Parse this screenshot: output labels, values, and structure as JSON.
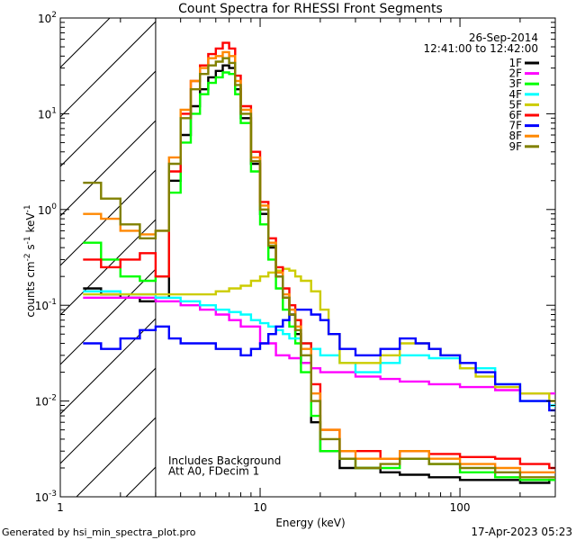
{
  "footer": {
    "generated_by": "Generated by hsi_min_spectra_plot.pro",
    "timestamp": "17-Apr-2023 05:23"
  },
  "chart_data": {
    "type": "line",
    "title": "Count Spectra for RHESSI Front Segments",
    "xlabel": "Energy (keV)",
    "ylabel_base": "counts cm",
    "ylabel_parts": [
      "-2",
      " s",
      "-1",
      " keV",
      "-1"
    ],
    "x_scale": "log",
    "y_scale": "log",
    "xlim": [
      1,
      300
    ],
    "ylim": [
      0.001,
      100
    ],
    "x_ticks": [
      1,
      10,
      100
    ],
    "x_tick_labels": [
      "1",
      "10",
      "100"
    ],
    "y_ticks": [
      0.001,
      0.01,
      0.1,
      1,
      10,
      100
    ],
    "y_tick_labels": [
      {
        "base": "10",
        "exp": "-3"
      },
      {
        "base": "10",
        "exp": "-2"
      },
      {
        "base": "10",
        "exp": "-1"
      },
      {
        "base": "10",
        "exp": "0"
      },
      {
        "base": "10",
        "exp": "1"
      },
      {
        "base": "10",
        "exp": "2"
      }
    ],
    "date": "26-Sep-2014",
    "time_range": "12:41:00 to 12:42:00",
    "hatched_region_xmax": 3,
    "annotations": [
      "Includes Background",
      "Att A0, FDecim 1"
    ],
    "series": [
      {
        "name": "1F",
        "color": "#000000",
        "x": [
          1.3,
          1.6,
          2.0,
          2.5,
          3.0,
          3.5,
          4,
          4.5,
          5,
          5.5,
          6,
          6.5,
          7,
          7.5,
          8,
          9,
          10,
          11,
          12,
          13,
          14,
          15,
          16,
          18,
          20,
          25,
          30,
          40,
          50,
          70,
          100,
          150,
          200,
          280
        ],
        "y": [
          0.15,
          0.13,
          0.12,
          0.11,
          0.12,
          2.0,
          6,
          12,
          18,
          24,
          28,
          32,
          30,
          18,
          9,
          3,
          0.9,
          0.4,
          0.2,
          0.12,
          0.08,
          0.05,
          0.025,
          0.006,
          0.003,
          0.002,
          0.002,
          0.0018,
          0.0017,
          0.0016,
          0.0015,
          0.0015,
          0.0014,
          0.0015
        ]
      },
      {
        "name": "2F",
        "color": "#ff00ff",
        "x": [
          1.3,
          2.0,
          3.0,
          4,
          5,
          6,
          7,
          8,
          10,
          12,
          14,
          16,
          18,
          20,
          25,
          30,
          40,
          50,
          70,
          100,
          150,
          200,
          280
        ],
        "y": [
          0.12,
          0.12,
          0.11,
          0.1,
          0.09,
          0.08,
          0.07,
          0.06,
          0.04,
          0.03,
          0.028,
          0.025,
          0.022,
          0.02,
          0.02,
          0.018,
          0.017,
          0.016,
          0.015,
          0.014,
          0.013,
          0.012,
          0.012
        ]
      },
      {
        "name": "3F",
        "color": "#00ff00",
        "x": [
          1.3,
          1.6,
          2.0,
          2.5,
          3.0,
          3.5,
          4,
          4.5,
          5,
          5.5,
          6,
          6.5,
          7,
          7.5,
          8,
          9,
          10,
          11,
          12,
          13,
          14,
          15,
          16,
          18,
          20,
          25,
          30,
          40,
          50,
          70,
          100,
          150,
          200,
          280
        ],
        "y": [
          0.45,
          0.3,
          0.2,
          0.18,
          0.2,
          1.5,
          5,
          10,
          16,
          21,
          24,
          27,
          26,
          16,
          8,
          2.5,
          0.7,
          0.3,
          0.15,
          0.09,
          0.06,
          0.04,
          0.02,
          0.007,
          0.003,
          0.0025,
          0.002,
          0.002,
          0.0025,
          0.0022,
          0.0018,
          0.0016,
          0.0015,
          0.0015
        ]
      },
      {
        "name": "4F",
        "color": "#00ffff",
        "x": [
          1.3,
          2.0,
          3.0,
          4,
          5,
          6,
          7,
          8,
          9,
          10,
          11,
          12,
          13,
          14,
          16,
          18,
          20,
          25,
          30,
          40,
          50,
          70,
          100,
          150,
          200,
          280
        ],
        "y": [
          0.14,
          0.13,
          0.12,
          0.11,
          0.1,
          0.09,
          0.085,
          0.08,
          0.07,
          0.065,
          0.06,
          0.055,
          0.05,
          0.045,
          0.04,
          0.035,
          0.03,
          0.025,
          0.02,
          0.025,
          0.03,
          0.028,
          0.022,
          0.015,
          0.01,
          0.009
        ]
      },
      {
        "name": "5F",
        "color": "#cccc00",
        "x": [
          1.3,
          2.0,
          3.0,
          4,
          5,
          6,
          7,
          8,
          9,
          10,
          11,
          12,
          13,
          14,
          15,
          16,
          18,
          20,
          22,
          25,
          30,
          40,
          50,
          60,
          70,
          80,
          100,
          120,
          150,
          200,
          280
        ],
        "y": [
          0.13,
          0.13,
          0.13,
          0.13,
          0.13,
          0.14,
          0.15,
          0.16,
          0.18,
          0.2,
          0.22,
          0.23,
          0.24,
          0.23,
          0.2,
          0.18,
          0.14,
          0.09,
          0.05,
          0.025,
          0.025,
          0.03,
          0.04,
          0.04,
          0.035,
          0.03,
          0.022,
          0.018,
          0.014,
          0.012,
          0.01
        ]
      },
      {
        "name": "6F",
        "color": "#ff0000",
        "x": [
          1.3,
          1.6,
          2.0,
          2.5,
          3.0,
          3.5,
          4,
          4.5,
          5,
          5.5,
          6,
          6.5,
          7,
          7.5,
          8,
          9,
          10,
          11,
          12,
          13,
          14,
          15,
          16,
          18,
          20,
          25,
          30,
          40,
          50,
          70,
          100,
          150,
          200,
          280
        ],
        "y": [
          0.3,
          0.25,
          0.3,
          0.35,
          0.2,
          2.5,
          10,
          22,
          32,
          42,
          48,
          55,
          48,
          25,
          12,
          4,
          1.2,
          0.5,
          0.25,
          0.15,
          0.1,
          0.07,
          0.04,
          0.015,
          0.005,
          0.003,
          0.003,
          0.0025,
          0.003,
          0.0028,
          0.0026,
          0.0025,
          0.0022,
          0.002
        ]
      },
      {
        "name": "7F",
        "color": "#0000ff",
        "x": [
          1.3,
          1.6,
          2.0,
          2.5,
          3.0,
          3.5,
          4,
          5,
          6,
          7,
          8,
          9,
          10,
          11,
          12,
          13,
          14,
          15,
          16,
          18,
          20,
          22,
          25,
          30,
          40,
          50,
          60,
          70,
          80,
          100,
          120,
          150,
          200,
          280
        ],
        "y": [
          0.04,
          0.035,
          0.045,
          0.055,
          0.06,
          0.045,
          0.04,
          0.04,
          0.035,
          0.035,
          0.03,
          0.035,
          0.04,
          0.05,
          0.06,
          0.07,
          0.08,
          0.09,
          0.09,
          0.08,
          0.07,
          0.05,
          0.035,
          0.03,
          0.035,
          0.045,
          0.04,
          0.035,
          0.03,
          0.025,
          0.02,
          0.015,
          0.01,
          0.008
        ]
      },
      {
        "name": "8F",
        "color": "#ff8800",
        "x": [
          1.3,
          1.6,
          2.0,
          2.5,
          3.0,
          3.5,
          4,
          4.5,
          5,
          5.5,
          6,
          6.5,
          7,
          7.5,
          8,
          9,
          10,
          11,
          12,
          13,
          14,
          15,
          16,
          18,
          20,
          25,
          30,
          40,
          50,
          70,
          100,
          150,
          200,
          280
        ],
        "y": [
          0.9,
          0.8,
          0.6,
          0.55,
          0.6,
          3.5,
          11,
          22,
          30,
          38,
          40,
          44,
          40,
          22,
          11,
          3.5,
          1.1,
          0.45,
          0.22,
          0.13,
          0.09,
          0.06,
          0.035,
          0.012,
          0.005,
          0.003,
          0.0025,
          0.0025,
          0.003,
          0.0025,
          0.0022,
          0.002,
          0.0018,
          0.0018
        ]
      },
      {
        "name": "9F",
        "color": "#808000",
        "x": [
          1.3,
          1.6,
          2.0,
          2.5,
          3.0,
          3.5,
          4,
          4.5,
          5,
          5.5,
          6,
          6.5,
          7,
          7.5,
          8,
          9,
          10,
          11,
          12,
          13,
          14,
          15,
          16,
          18,
          20,
          25,
          30,
          40,
          50,
          70,
          100,
          150,
          200,
          280
        ],
        "y": [
          1.9,
          1.3,
          0.7,
          0.5,
          0.6,
          3,
          9,
          18,
          26,
          32,
          35,
          38,
          34,
          20,
          10,
          3.2,
          1.0,
          0.42,
          0.2,
          0.12,
          0.08,
          0.055,
          0.03,
          0.01,
          0.004,
          0.0025,
          0.002,
          0.0022,
          0.0025,
          0.0022,
          0.002,
          0.0018,
          0.0016,
          0.0016
        ]
      }
    ]
  }
}
